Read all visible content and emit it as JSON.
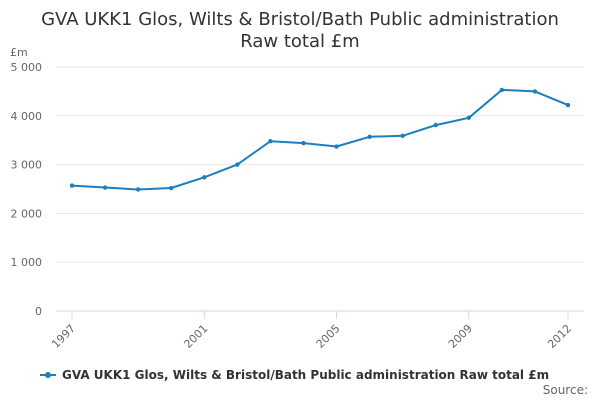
{
  "colors": {
    "series": "#1b7fbd",
    "text": "#333333",
    "muted": "#666666"
  },
  "chart_data": {
    "type": "line",
    "title_line1": "GVA UKK1 Glos, Wilts & Bristol/Bath Public administration",
    "title_line2": "Raw total £m",
    "ylabel": "£m",
    "xlabel": "",
    "ylim": [
      0,
      5000
    ],
    "yticks": [
      0,
      1000,
      2000,
      3000,
      4000,
      5000
    ],
    "ytick_labels": [
      "0",
      "1 000",
      "2 000",
      "3 000",
      "4 000",
      "5 000"
    ],
    "x": [
      1997,
      1998,
      1999,
      2000,
      2001,
      2002,
      2003,
      2004,
      2005,
      2006,
      2007,
      2008,
      2009,
      2010,
      2011,
      2012
    ],
    "xticks": [
      1997,
      2001,
      2005,
      2009,
      2012
    ],
    "xtick_labels": [
      "1997",
      "2001",
      "2005",
      "2009",
      "2012"
    ],
    "series": [
      {
        "name": "GVA UKK1 Glos, Wilts & Bristol/Bath Public administration Raw total £m",
        "values": [
          2570,
          2530,
          2490,
          2520,
          2740,
          3000,
          3480,
          3440,
          3370,
          3570,
          3590,
          3810,
          3960,
          4530,
          4500,
          4220
        ]
      }
    ],
    "legend_position": "bottom-center",
    "grid": true
  },
  "footer": {
    "source_label": "Source:"
  }
}
